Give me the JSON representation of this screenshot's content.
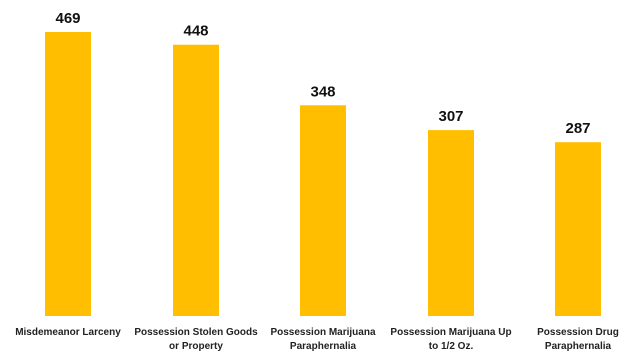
{
  "chart_data": {
    "type": "bar",
    "title": "",
    "xlabel": "",
    "ylabel": "",
    "categories": [
      [
        "Misdemeanor Larceny"
      ],
      [
        "Possession Stolen Goods",
        "or Property"
      ],
      [
        "Possession Marijuana",
        "Paraphernalia"
      ],
      [
        "Possession Marijuana Up",
        "to 1/2 Oz."
      ],
      [
        "Possession Drug",
        "Paraphernalia"
      ]
    ],
    "values": [
      469,
      448,
      348,
      307,
      287
    ],
    "data_labels": [
      "469",
      "448",
      "348",
      "307",
      "287"
    ],
    "ylim": [
      0,
      469
    ],
    "grid": false,
    "legend": "none",
    "bar_color": "#FFBF00"
  }
}
